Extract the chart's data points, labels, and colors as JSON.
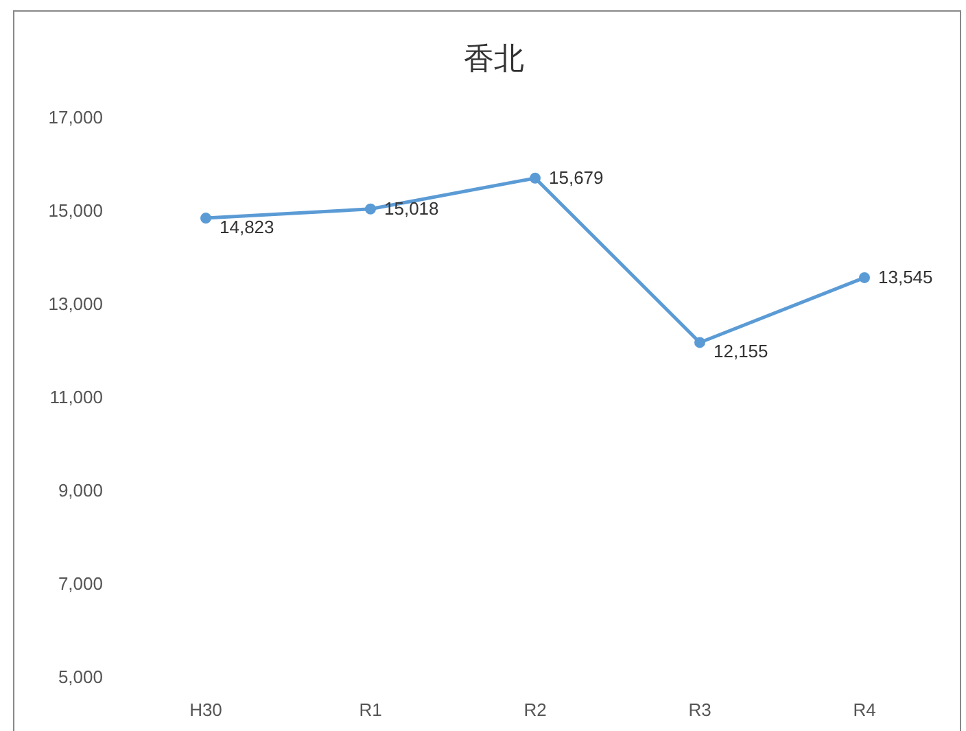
{
  "chart_data": {
    "type": "line",
    "title": "香北",
    "categories": [
      "H30",
      "R1",
      "R2",
      "R3",
      "R4"
    ],
    "series": [
      {
        "color": "#5b9bd5",
        "values": [
          14823,
          15018,
          15679,
          12155,
          13545
        ],
        "value_labels": [
          "14,823",
          "15,018",
          "15,679",
          "12,155",
          "13,545"
        ]
      }
    ],
    "ylim": [
      5000,
      17000
    ],
    "yticks": [
      {
        "value": 5000,
        "label": "5,000"
      },
      {
        "value": 7000,
        "label": "7,000"
      },
      {
        "value": 9000,
        "label": "9,000"
      },
      {
        "value": 11000,
        "label": "11,000"
      },
      {
        "value": 13000,
        "label": "13,000"
      },
      {
        "value": 15000,
        "label": "15,000"
      },
      {
        "value": 17000,
        "label": "17,000"
      }
    ],
    "marker": "circle",
    "line_style": "solid"
  }
}
